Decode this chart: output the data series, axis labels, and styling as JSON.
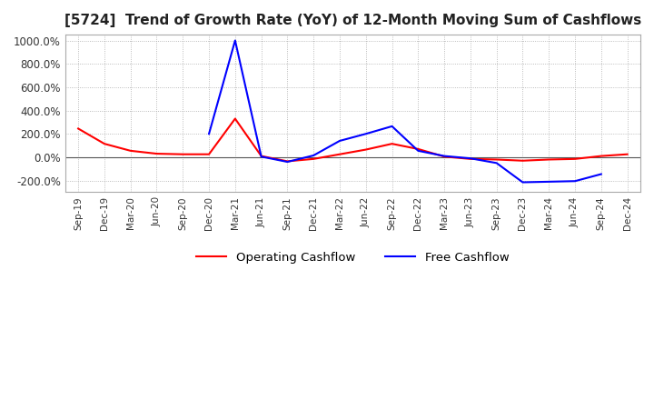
{
  "title": "[5724]  Trend of Growth Rate (YoY) of 12-Month Moving Sum of Cashflows",
  "title_fontsize": 11,
  "ylim": [
    -300,
    1050
  ],
  "yticks": [
    -200,
    0,
    200,
    400,
    600,
    800,
    1000
  ],
  "yticklabels": [
    "-200.0%",
    "0.0%",
    "200.0%",
    "400.0%",
    "600.0%",
    "800.0%",
    "1000.0%"
  ],
  "x_labels": [
    "Sep-19",
    "Dec-19",
    "Mar-20",
    "Jun-20",
    "Sep-20",
    "Dec-20",
    "Mar-21",
    "Jun-21",
    "Sep-21",
    "Dec-21",
    "Mar-22",
    "Jun-22",
    "Sep-22",
    "Dec-22",
    "Mar-23",
    "Jun-23",
    "Sep-23",
    "Dec-23",
    "Mar-24",
    "Jun-24",
    "Sep-24",
    "Dec-24"
  ],
  "operating_cashflow": [
    245,
    115,
    55,
    30,
    25,
    25,
    330,
    10,
    -35,
    -15,
    25,
    65,
    115,
    70,
    5,
    -15,
    -20,
    -30,
    -20,
    -15,
    10,
    25
  ],
  "free_cashflow": [
    null,
    null,
    null,
    null,
    null,
    200,
    1000,
    5,
    -40,
    15,
    140,
    200,
    265,
    55,
    10,
    -10,
    -50,
    -215,
    -210,
    -205,
    -145,
    null
  ],
  "op_color": "#ff0000",
  "fc_color": "#0000ff",
  "background_color": "#ffffff",
  "grid_color": "#aaaaaa",
  "line_width": 1.5
}
